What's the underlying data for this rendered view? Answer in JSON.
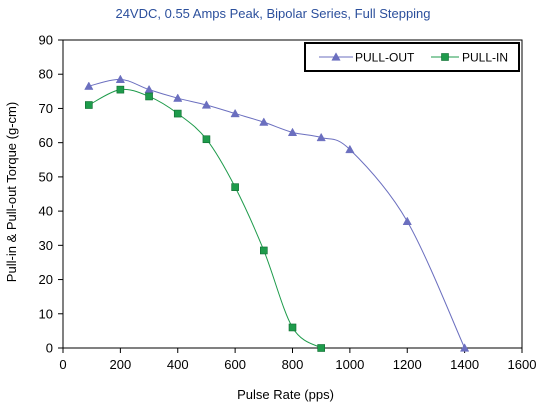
{
  "chart_data": {
    "type": "line",
    "title": "24VDC,  0.55 Amps Peak, Bipolar Series, Full Stepping",
    "xlabel": "Pulse Rate (pps)",
    "ylabel": "Pull-in & Pull-out Torque (g-cm)",
    "xlim": [
      0,
      1600
    ],
    "ylim": [
      0,
      90
    ],
    "x_ticks": [
      "0",
      "200",
      "400",
      "600",
      "800",
      "1000",
      "1200",
      "1400",
      "1600"
    ],
    "y_ticks": [
      "0",
      "10",
      "20",
      "30",
      "40",
      "50",
      "60",
      "70",
      "80",
      "90"
    ],
    "grid": false,
    "legend_position": "top-right",
    "series": [
      {
        "name": "PULL-OUT",
        "color": "#6b6fbf",
        "marker": "triangle",
        "x": [
          90,
          200,
          300,
          400,
          500,
          600,
          700,
          800,
          900,
          1000,
          1200,
          1400
        ],
        "y": [
          76.5,
          78.5,
          75.5,
          73,
          71,
          68.5,
          66,
          63,
          61.5,
          58,
          37,
          0
        ]
      },
      {
        "name": "PULL-IN",
        "color": "#1e9b4b",
        "marker": "square",
        "x": [
          90,
          200,
          300,
          400,
          500,
          600,
          700,
          800,
          900
        ],
        "y": [
          71,
          75.5,
          73.5,
          68.5,
          61,
          47,
          28.5,
          6,
          0
        ]
      }
    ]
  }
}
